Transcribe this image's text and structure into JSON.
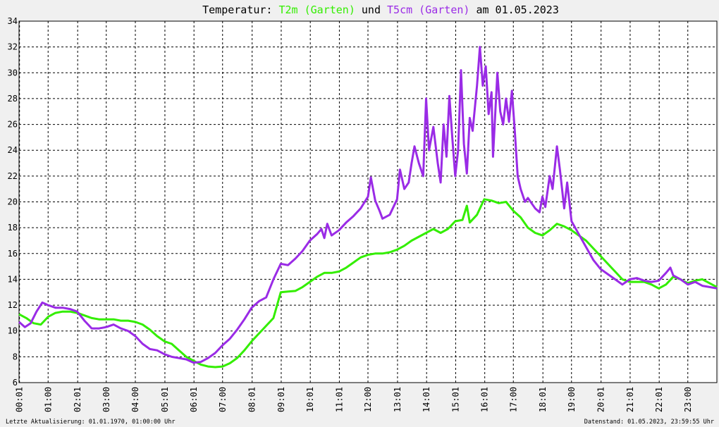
{
  "colors": {
    "background": "#f0f0f0",
    "plot_background": "#ffffff",
    "t2m": "#33ee00",
    "t5cm": "#9a2be6",
    "grid": "#000000"
  },
  "chart_data": {
    "type": "line",
    "title": {
      "prefix": "Temperatur: ",
      "series1": "T2m (Garten)",
      "connector": " und ",
      "series2": "T5cm (Garten)",
      "suffix": " am 01.05.2023"
    },
    "xlabel": "",
    "ylabel": "",
    "x_unit": "hours since 00:00",
    "xlim": [
      0,
      24
    ],
    "ylim": [
      6,
      34
    ],
    "y_ticks": [
      "6",
      "8",
      "10",
      "12",
      "14",
      "16",
      "18",
      "20",
      "22",
      "24",
      "26",
      "28",
      "30",
      "32",
      "34"
    ],
    "x_ticks": [
      {
        "hour": 0.0167,
        "label": "00:01"
      },
      {
        "hour": 1.0,
        "label": "01:00"
      },
      {
        "hour": 2.0167,
        "label": "02:01"
      },
      {
        "hour": 3.0,
        "label": "03:00"
      },
      {
        "hour": 4.0,
        "label": "04:00"
      },
      {
        "hour": 5.0167,
        "label": "05:01"
      },
      {
        "hour": 6.0167,
        "label": "06:01"
      },
      {
        "hour": 7.0,
        "label": "07:00"
      },
      {
        "hour": 8.0167,
        "label": "08:01"
      },
      {
        "hour": 9.0167,
        "label": "09:01"
      },
      {
        "hour": 10.0167,
        "label": "10:01"
      },
      {
        "hour": 11.0167,
        "label": "11:01"
      },
      {
        "hour": 12.0,
        "label": "12:00"
      },
      {
        "hour": 13.0167,
        "label": "13:01"
      },
      {
        "hour": 14.0167,
        "label": "14:01"
      },
      {
        "hour": 15.0167,
        "label": "15:01"
      },
      {
        "hour": 16.0167,
        "label": "16:01"
      },
      {
        "hour": 17.0,
        "label": "17:00"
      },
      {
        "hour": 18.0167,
        "label": "18:01"
      },
      {
        "hour": 19.0,
        "label": "19:00"
      },
      {
        "hour": 20.0167,
        "label": "20:01"
      },
      {
        "hour": 21.0167,
        "label": "21:01"
      },
      {
        "hour": 22.0167,
        "label": "22:01"
      },
      {
        "hour": 23.0,
        "label": "23:00"
      }
    ],
    "grid": true,
    "legend": "in title",
    "series": [
      {
        "name": "T2m (Garten)",
        "color": "#33ee00",
        "points": [
          [
            0,
            11.3
          ],
          [
            0.25,
            11.0
          ],
          [
            0.5,
            10.6
          ],
          [
            0.75,
            10.5
          ],
          [
            1.0,
            11.1
          ],
          [
            1.25,
            11.4
          ],
          [
            1.5,
            11.5
          ],
          [
            1.75,
            11.5
          ],
          [
            2.0,
            11.4
          ],
          [
            2.25,
            11.2
          ],
          [
            2.5,
            11.0
          ],
          [
            2.75,
            10.9
          ],
          [
            3.0,
            10.9
          ],
          [
            3.25,
            10.9
          ],
          [
            3.5,
            10.8
          ],
          [
            3.75,
            10.8
          ],
          [
            4.0,
            10.7
          ],
          [
            4.25,
            10.5
          ],
          [
            4.5,
            10.1
          ],
          [
            4.75,
            9.6
          ],
          [
            5.0,
            9.2
          ],
          [
            5.25,
            9.0
          ],
          [
            5.5,
            8.5
          ],
          [
            5.75,
            8.0
          ],
          [
            6.0,
            7.7
          ],
          [
            6.25,
            7.4
          ],
          [
            6.5,
            7.25
          ],
          [
            6.75,
            7.2
          ],
          [
            7.0,
            7.25
          ],
          [
            7.25,
            7.5
          ],
          [
            7.5,
            7.9
          ],
          [
            7.75,
            8.5
          ],
          [
            8.0,
            9.2
          ],
          [
            8.25,
            9.8
          ],
          [
            8.5,
            10.4
          ],
          [
            8.75,
            11.0
          ],
          [
            9.0,
            13.0
          ],
          [
            9.25,
            13.05
          ],
          [
            9.5,
            13.1
          ],
          [
            9.75,
            13.4
          ],
          [
            10.0,
            13.8
          ],
          [
            10.25,
            14.2
          ],
          [
            10.5,
            14.5
          ],
          [
            10.75,
            14.5
          ],
          [
            11.0,
            14.6
          ],
          [
            11.25,
            14.9
          ],
          [
            11.5,
            15.3
          ],
          [
            11.75,
            15.7
          ],
          [
            12.0,
            15.9
          ],
          [
            12.25,
            16.0
          ],
          [
            12.5,
            16.0
          ],
          [
            12.75,
            16.1
          ],
          [
            13.0,
            16.3
          ],
          [
            13.25,
            16.6
          ],
          [
            13.5,
            17.0
          ],
          [
            13.75,
            17.3
          ],
          [
            14.0,
            17.6
          ],
          [
            14.25,
            17.9
          ],
          [
            14.5,
            17.6
          ],
          [
            14.75,
            17.9
          ],
          [
            15.0,
            18.5
          ],
          [
            15.25,
            18.6
          ],
          [
            15.4,
            19.7
          ],
          [
            15.5,
            18.4
          ],
          [
            15.75,
            19.0
          ],
          [
            16.0,
            20.2
          ],
          [
            16.25,
            20.1
          ],
          [
            16.5,
            19.9
          ],
          [
            16.75,
            20.0
          ],
          [
            17.0,
            19.3
          ],
          [
            17.25,
            18.8
          ],
          [
            17.5,
            18.0
          ],
          [
            17.75,
            17.6
          ],
          [
            18.0,
            17.4
          ],
          [
            18.25,
            17.8
          ],
          [
            18.5,
            18.3
          ],
          [
            18.75,
            18.1
          ],
          [
            19.0,
            17.8
          ],
          [
            19.25,
            17.4
          ],
          [
            19.5,
            17.0
          ],
          [
            19.75,
            16.4
          ],
          [
            20.0,
            15.8
          ],
          [
            20.25,
            15.2
          ],
          [
            20.5,
            14.6
          ],
          [
            20.75,
            14.0
          ],
          [
            21.0,
            13.8
          ],
          [
            21.25,
            13.8
          ],
          [
            21.5,
            13.8
          ],
          [
            21.75,
            13.6
          ],
          [
            22.0,
            13.3
          ],
          [
            22.25,
            13.6
          ],
          [
            22.5,
            14.2
          ],
          [
            22.75,
            14.0
          ],
          [
            23.0,
            13.7
          ],
          [
            23.25,
            13.9
          ],
          [
            23.5,
            14.0
          ],
          [
            23.75,
            13.7
          ],
          [
            24.0,
            13.4
          ]
        ]
      },
      {
        "name": "T5cm (Garten)",
        "color": "#9a2be6",
        "points": [
          [
            0,
            10.7
          ],
          [
            0.2,
            10.3
          ],
          [
            0.4,
            10.6
          ],
          [
            0.6,
            11.5
          ],
          [
            0.8,
            12.2
          ],
          [
            1.0,
            12.0
          ],
          [
            1.25,
            11.8
          ],
          [
            1.5,
            11.8
          ],
          [
            1.75,
            11.7
          ],
          [
            2.0,
            11.5
          ],
          [
            2.25,
            10.8
          ],
          [
            2.5,
            10.2
          ],
          [
            2.75,
            10.2
          ],
          [
            3.0,
            10.3
          ],
          [
            3.25,
            10.5
          ],
          [
            3.5,
            10.2
          ],
          [
            3.75,
            10.0
          ],
          [
            4.0,
            9.6
          ],
          [
            4.25,
            9.0
          ],
          [
            4.5,
            8.6
          ],
          [
            4.75,
            8.5
          ],
          [
            5.0,
            8.2
          ],
          [
            5.25,
            8.0
          ],
          [
            5.5,
            7.9
          ],
          [
            5.75,
            7.8
          ],
          [
            6.0,
            7.55
          ],
          [
            6.25,
            7.6
          ],
          [
            6.5,
            7.9
          ],
          [
            6.75,
            8.3
          ],
          [
            7.0,
            8.9
          ],
          [
            7.25,
            9.4
          ],
          [
            7.5,
            10.1
          ],
          [
            7.75,
            10.9
          ],
          [
            8.0,
            11.8
          ],
          [
            8.25,
            12.3
          ],
          [
            8.5,
            12.6
          ],
          [
            8.75,
            14.0
          ],
          [
            9.0,
            15.2
          ],
          [
            9.25,
            15.1
          ],
          [
            9.5,
            15.6
          ],
          [
            9.75,
            16.2
          ],
          [
            10.0,
            17.0
          ],
          [
            10.25,
            17.5
          ],
          [
            10.4,
            17.9
          ],
          [
            10.5,
            17.2
          ],
          [
            10.6,
            18.3
          ],
          [
            10.75,
            17.4
          ],
          [
            11.0,
            17.8
          ],
          [
            11.25,
            18.4
          ],
          [
            11.5,
            18.9
          ],
          [
            11.75,
            19.5
          ],
          [
            12.0,
            20.4
          ],
          [
            12.1,
            21.9
          ],
          [
            12.25,
            20.1
          ],
          [
            12.4,
            19.3
          ],
          [
            12.5,
            18.7
          ],
          [
            12.75,
            19.0
          ],
          [
            13.0,
            20.2
          ],
          [
            13.1,
            22.5
          ],
          [
            13.25,
            21.0
          ],
          [
            13.4,
            21.5
          ],
          [
            13.5,
            23.0
          ],
          [
            13.6,
            24.3
          ],
          [
            13.75,
            23.0
          ],
          [
            13.9,
            22.0
          ],
          [
            14.0,
            28.0
          ],
          [
            14.1,
            24.0
          ],
          [
            14.25,
            25.8
          ],
          [
            14.4,
            23.0
          ],
          [
            14.5,
            21.5
          ],
          [
            14.6,
            26.0
          ],
          [
            14.7,
            23.5
          ],
          [
            14.8,
            28.2
          ],
          [
            14.9,
            25.0
          ],
          [
            15.0,
            22.0
          ],
          [
            15.1,
            24.0
          ],
          [
            15.2,
            30.2
          ],
          [
            15.3,
            24.5
          ],
          [
            15.4,
            22.2
          ],
          [
            15.5,
            26.5
          ],
          [
            15.6,
            25.5
          ],
          [
            15.75,
            29.0
          ],
          [
            15.85,
            32.0
          ],
          [
            15.95,
            29.0
          ],
          [
            16.05,
            30.5
          ],
          [
            16.15,
            26.8
          ],
          [
            16.25,
            28.5
          ],
          [
            16.3,
            23.5
          ],
          [
            16.45,
            30.0
          ],
          [
            16.55,
            27.0
          ],
          [
            16.65,
            26.0
          ],
          [
            16.75,
            28.0
          ],
          [
            16.85,
            26.2
          ],
          [
            16.95,
            28.6
          ],
          [
            17.05,
            25.5
          ],
          [
            17.15,
            22.0
          ],
          [
            17.25,
            21.0
          ],
          [
            17.4,
            20.0
          ],
          [
            17.5,
            20.3
          ],
          [
            17.75,
            19.5
          ],
          [
            17.9,
            19.2
          ],
          [
            18.0,
            20.4
          ],
          [
            18.1,
            19.6
          ],
          [
            18.25,
            22.0
          ],
          [
            18.35,
            21.0
          ],
          [
            18.5,
            24.3
          ],
          [
            18.6,
            22.5
          ],
          [
            18.75,
            19.5
          ],
          [
            18.85,
            21.5
          ],
          [
            19.0,
            18.5
          ],
          [
            19.25,
            17.5
          ],
          [
            19.5,
            16.5
          ],
          [
            19.75,
            15.5
          ],
          [
            20.0,
            14.8
          ],
          [
            20.25,
            14.4
          ],
          [
            20.5,
            14.0
          ],
          [
            20.75,
            13.6
          ],
          [
            21.0,
            14.0
          ],
          [
            21.25,
            14.1
          ],
          [
            21.5,
            13.9
          ],
          [
            21.75,
            13.8
          ],
          [
            22.0,
            13.9
          ],
          [
            22.25,
            14.5
          ],
          [
            22.4,
            14.9
          ],
          [
            22.5,
            14.3
          ],
          [
            22.75,
            14.0
          ],
          [
            23.0,
            13.6
          ],
          [
            23.25,
            13.8
          ],
          [
            23.5,
            13.5
          ],
          [
            23.75,
            13.4
          ],
          [
            24.0,
            13.3
          ]
        ]
      }
    ]
  },
  "footer": {
    "left": "Letzte Aktualisierung: 01.01.1970, 01:00:00 Uhr",
    "right": "Datenstand: 01.05.2023, 23:59:55 Uhr"
  }
}
